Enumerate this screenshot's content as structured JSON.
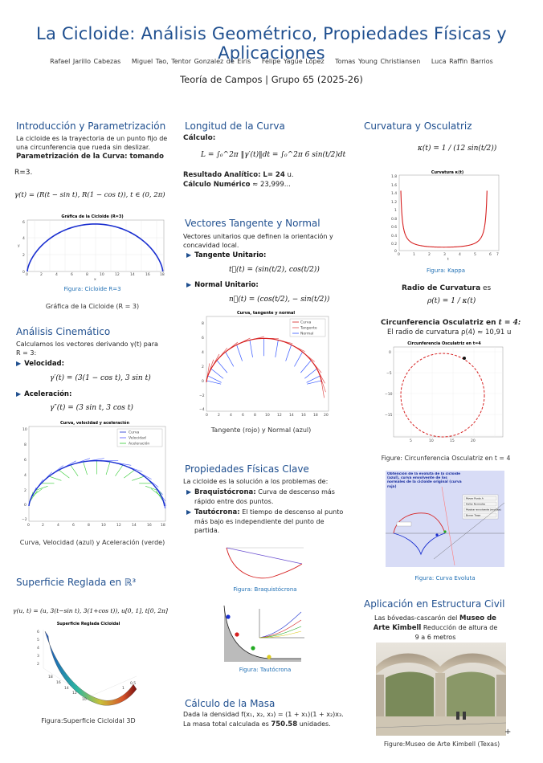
{
  "header": {
    "title": "La Cicloide: Análisis Geométrico, Propiedades Físicas y Aplicaciones",
    "authors": [
      "Rafael Jarillo Cabezas",
      "Miguel Tao, Tentor Gonzalez de Eiris",
      "Felipe Yagüe López",
      "Tomas Young Christiansen",
      "Luca Raffin Barrios"
    ],
    "group": "Teoría de Campos | Grupo 65 (2025-26)"
  },
  "col1": {
    "intro_title": "Introducción y Parametrización",
    "intro_text": "La cicloide es la trayectoria de un punto fijo de una circunferencia que rueda sin deslizar.",
    "param_label": "Parametrización de la Curva: tomando",
    "param_r": "R=3.",
    "param_eq": "γ(t) = (R(t − sin t), R(1 − cos t)),   t ∈ (0, 2π)",
    "fig1_plot_title": "Gráfica de la Cicloide (R=3)",
    "fig1_caption_label": "Figura:",
    "fig1_caption": "Cicloide R=3",
    "fig1_caption2": "Gráfica de la Cicloide (R = 3)",
    "kin_title": "Análisis Cinemático",
    "kin_text": "Calculamos los vectores derivando γ(t) para R = 3:",
    "vel_label": "Velocidad:",
    "vel_eq": "γ′(t) = (3(1 − cos t), 3 sin t)",
    "acc_label": "Aceleración:",
    "acc_eq": "γ″(t) = (3 sin t, 3 cos t)",
    "fig2_plot_title": "Curva, velocidad y aceleración",
    "fig2_legend": [
      "Curva",
      "Velocidad",
      "Aceleración"
    ],
    "fig2_caption": "Curva, Velocidad (azul) y Aceleración (verde)",
    "surf_title": "Superficie Reglada en ℝ³",
    "surf_eq": "γ(u, t) = (u, 3(t−sin t), 3(1+cos t)), u[0, 1], t[0, 2π]",
    "fig3_plot_title": "Superficie Reglada Cicloidal",
    "fig3_caption": "Figura:Superficie Cicloidal 3D"
  },
  "col2": {
    "len_title": "Longitud de la Curva",
    "len_calc": "Cálculo:",
    "len_eq": "L = ∫₀^2π ‖γ′(t)‖dt = ∫₀^2π 6 sin(t/2)dt",
    "len_result_label": "Resultado Analítico: L= 24",
    "len_result_unit": "u.",
    "len_num_label": "Cálculo Numérico",
    "len_num_value": "≈ 23,999...",
    "tn_title": "Vectores Tangente y Normal",
    "tn_text": "Vectores unitarios que definen la orientación y concavidad local.",
    "tan_label": "Tangente Unitario:",
    "tan_eq": "t⃗(t) = (sin(t/2), cos(t/2))",
    "norm_label": "Normal Unitario:",
    "norm_eq": "n⃗(t) = (cos(t/2), − sin(t/2))",
    "fig4_plot_title": "Curva, tangente y normal",
    "fig4_legend": [
      "Curva",
      "Tangente",
      "Normal"
    ],
    "fig4_caption": "Tangente (rojo) y Normal (azul)",
    "phys_title": "Propiedades Físicas Clave",
    "phys_text": "La cicloide es la solución a los problemas de:",
    "braq_label": "Braquistócrona:",
    "braq_text": "Curva de descenso más rápido entre dos puntos.",
    "taut_label": "Tautócrona:",
    "taut_text": "El tiempo de descenso al punto más bajo es independiente del punto de partida.",
    "fig5_caption_label": "Figura:",
    "fig5_caption": "Braquistócrona",
    "fig6_caption_label": "Figura:",
    "fig6_caption": "Tautócrona",
    "mass_title": "Cálculo de la Masa",
    "mass_text1": "Dada la densidad f(x₁, x₂, x₃) = (1 + x₁)(1 + x₂)x₃.",
    "mass_text2_pre": "La masa total calculada es",
    "mass_value": "750.58",
    "mass_text2_post": "unidades."
  },
  "col3": {
    "curv_title": "Curvatura y Osculatriz",
    "curv_eq": "κ(t) = 1 / (12 sin(t/2))",
    "fig7_plot_title": "Curvatura κ(t)",
    "fig7_caption_label": "Figura:",
    "fig7_caption": "Kappa",
    "radius_label": "Radio de Curvatura",
    "radius_es": "es",
    "radius_eq": "ρ(t) = 1 / κ(t)",
    "osc_label": "Circunferencia Osculatriz en",
    "osc_t": "t = 4:",
    "osc_text": "El radio de curvatura ρ(4) ≈ 10,91 u",
    "fig8_plot_title": "Circunferencia Osculatriz en t=4",
    "fig8_caption": "Figure: Circunferencia Osculatriz en t = 4",
    "evol_title_box": "Obtención de la evoluta de la cicloide (azul), curva envolvente de los normales de la cicloide original (curva roja)",
    "evol_buttons": [
      "Mover Punto A",
      "Hallar Normales",
      "Mostrar envolvente (evoluta)",
      "Borrar Traza"
    ],
    "fig9_caption_label": "Figura:",
    "fig9_caption": "Curva Evoluta",
    "app_title": "Aplicación en Estructura Civil",
    "app_text_pre": "Las bóvedas-cascarón del",
    "app_bold": "Museo de Arte Kimbell",
    "app_text_post": "Reducción de altura de 9 a 6 metros",
    "fig10_caption": "Figure:Museo de Arte Kimbell (Texas)"
  },
  "colors": {
    "title": "#1f4f8f",
    "caption": "#1f6fb4",
    "curve": "#1a2fd0",
    "red": "#d62020",
    "green": "#33cc33"
  }
}
